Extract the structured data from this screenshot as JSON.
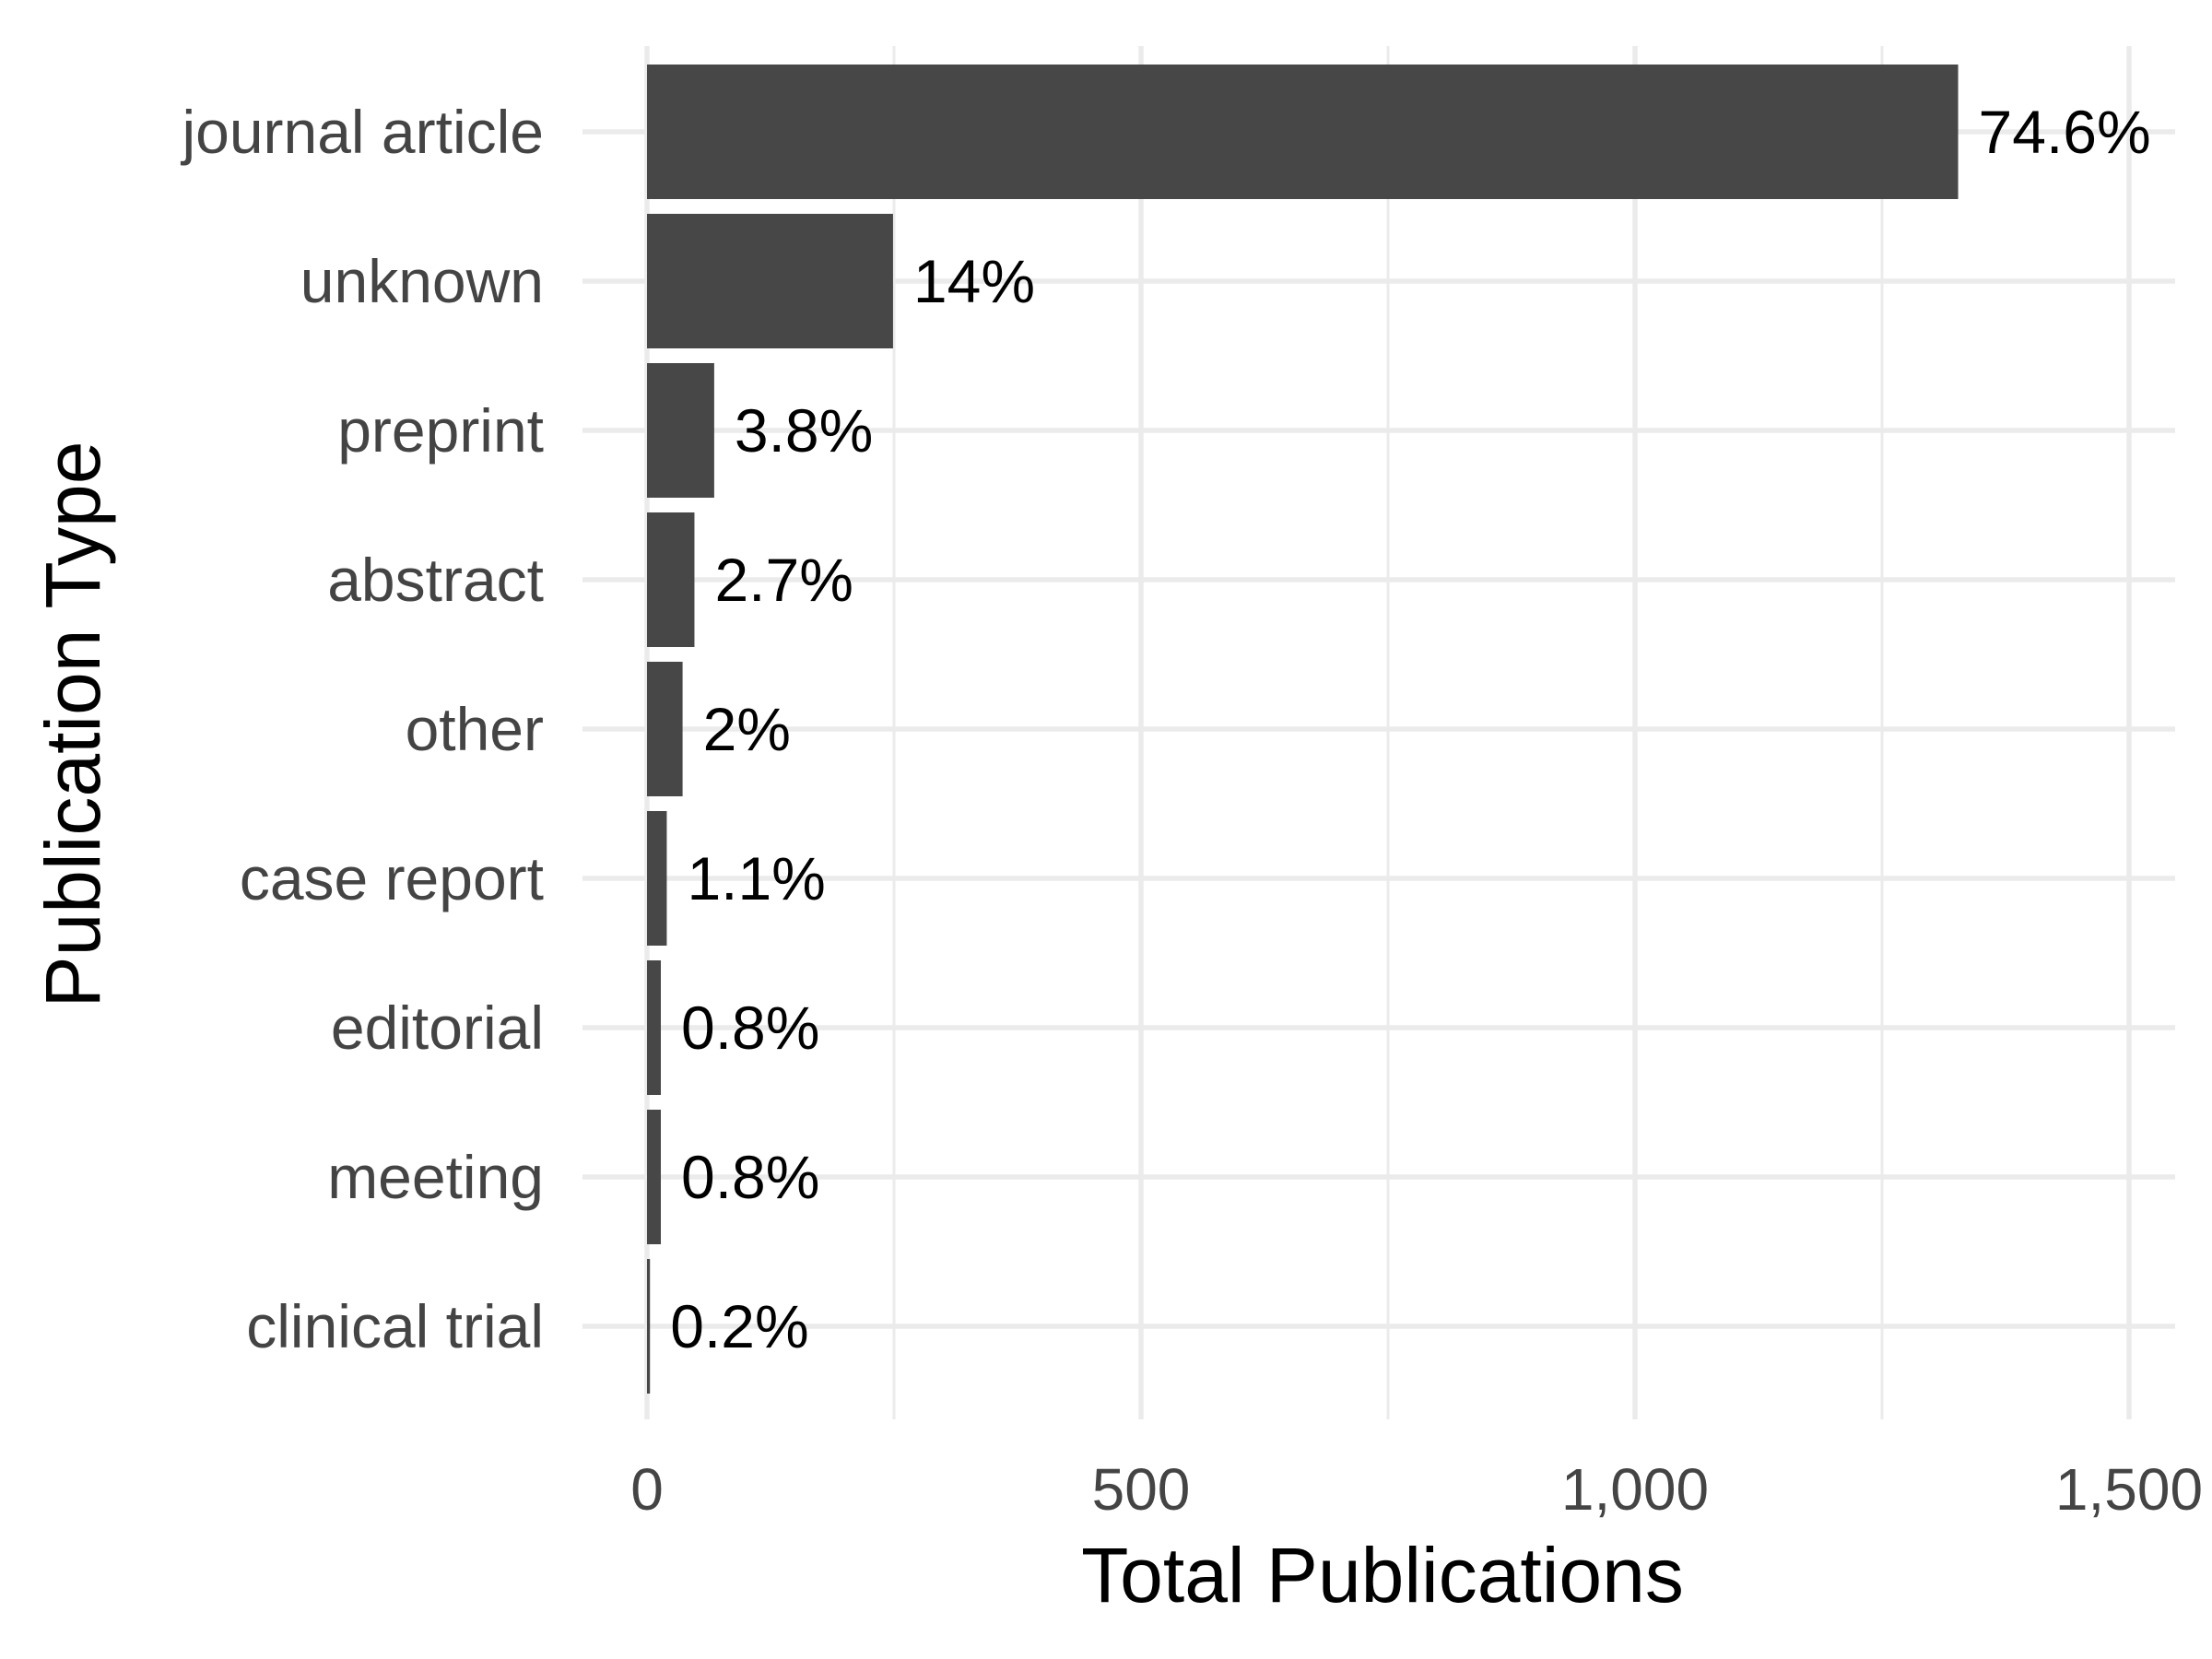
{
  "chart_data": {
    "type": "bar",
    "orientation": "horizontal",
    "categories": [
      "journal article",
      "unknown",
      "preprint",
      "abstract",
      "other",
      "case report",
      "editorial",
      "meeting",
      "clinical trial"
    ],
    "values": [
      1327,
      249,
      68,
      48,
      36,
      20,
      14,
      14,
      3
    ],
    "labels": [
      "74.6%",
      "14%",
      "3.8%",
      "2.7%",
      "2%",
      "1.1%",
      "0.8%",
      "0.8%",
      "0.2%"
    ],
    "xlabel": "Total Publications",
    "ylabel": "Publication Type",
    "xlim": [
      0,
      1550
    ],
    "xticks": [
      0,
      500,
      1000,
      1500
    ],
    "xtick_labels": [
      "0",
      "500",
      "1,000",
      "1,500"
    ],
    "grid": true,
    "bar_color": "#474747"
  }
}
